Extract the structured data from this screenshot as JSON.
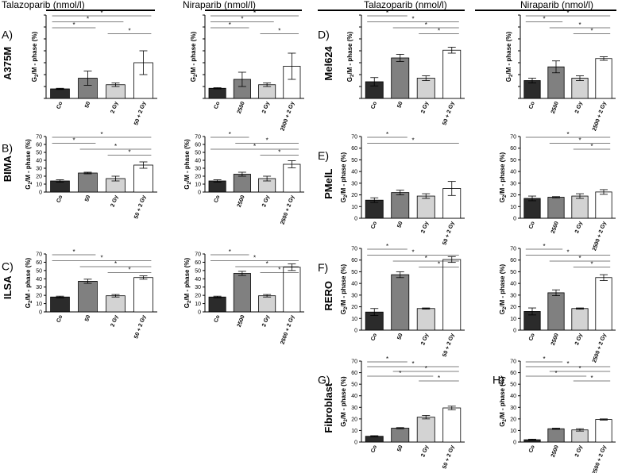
{
  "headers": [
    {
      "text": "Talazoparib (nmol/l)"
    },
    {
      "text": "Niraparib (nmol/l)"
    },
    {
      "text": "Talazoparib (nmol/l)"
    },
    {
      "text": "Niraparib (nmol/l)"
    }
  ],
  "ylabel": {
    "pre": "G",
    "sub": "2",
    "post": "/M - phase (%)"
  },
  "colors": {
    "co": "#2b2b2b",
    "drug": "#808080",
    "gy": "#d3d3d3",
    "combo": "#ffffff",
    "axis": "#000000"
  },
  "ylim": [
    0,
    70
  ],
  "yticks": [
    0,
    10,
    20,
    30,
    40,
    50,
    60,
    70
  ],
  "chart_data": [
    {
      "type": "bar",
      "panel": "A)",
      "cell_line": "A375M",
      "drug": "Talazoparib (nmol/l)",
      "categories": [
        "Co",
        "50",
        "2 Gy",
        "50 + 2 Gy"
      ],
      "values": [
        8,
        17,
        11.5,
        30
      ],
      "errors": [
        0.5,
        6,
        1.5,
        10
      ],
      "ytick_labels": false,
      "significance": [
        [
          0,
          3
        ],
        [
          0,
          2
        ],
        [
          0,
          1
        ],
        [
          2,
          3
        ]
      ]
    },
    {
      "type": "bar",
      "panel": "",
      "cell_line": "",
      "drug": "Niraparib (nmol/l)",
      "categories": [
        "Co",
        "2500",
        "2 Gy",
        "2500 + 2 Gy"
      ],
      "values": [
        8.5,
        16,
        11.5,
        27
      ],
      "errors": [
        0.5,
        6,
        1.5,
        11
      ],
      "ytick_labels": false,
      "significance": [
        [
          0,
          3
        ],
        [
          0,
          2
        ],
        [
          0,
          1
        ],
        [
          2,
          3
        ]
      ]
    },
    {
      "type": "bar",
      "panel": "B)",
      "cell_line": "BIMA",
      "drug": "",
      "categories": [
        "Co",
        "50",
        "2 Gy",
        "50 + 2 Gy"
      ],
      "values": [
        14,
        24,
        17,
        34
      ],
      "errors": [
        1.5,
        1,
        3,
        4
      ],
      "ytick_labels": true,
      "significance": [
        [
          0,
          3
        ],
        [
          0,
          1
        ],
        [
          1,
          3
        ],
        [
          2,
          3
        ]
      ]
    },
    {
      "type": "bar",
      "panel": "",
      "cell_line": "",
      "drug": "",
      "categories": [
        "Co",
        "2500",
        "2 Gy",
        "2500 + 2 Gy"
      ],
      "values": [
        14,
        22.5,
        17,
        35
      ],
      "errors": [
        1.5,
        2.5,
        3,
        4.5
      ],
      "ytick_labels": true,
      "significance": [
        [
          0,
          1
        ],
        [
          1,
          3
        ],
        [
          0,
          3
        ],
        [
          2,
          3
        ]
      ]
    },
    {
      "type": "bar",
      "panel": "C)",
      "cell_line": "ILSA",
      "drug": "",
      "categories": [
        "Co",
        "50",
        "2 Gy",
        "50 + 2 Gy"
      ],
      "values": [
        18,
        37,
        19.5,
        41.5
      ],
      "errors": [
        1,
        2.5,
        1.5,
        2
      ],
      "ytick_labels": true,
      "significance": [
        [
          0,
          1
        ],
        [
          0,
          3
        ],
        [
          1,
          3
        ],
        [
          2,
          3
        ]
      ]
    },
    {
      "type": "bar",
      "panel": "",
      "cell_line": "",
      "drug": "",
      "categories": [
        "Co",
        "2500",
        "2 Gy",
        "2500 + 2 Gy"
      ],
      "values": [
        18,
        46.5,
        19.5,
        54
      ],
      "errors": [
        1,
        2.5,
        1.5,
        4
      ],
      "ytick_labels": true,
      "significance": [
        [
          0,
          1
        ],
        [
          0,
          3
        ],
        [
          1,
          3
        ],
        [
          2,
          3
        ]
      ]
    },
    {
      "type": "bar",
      "panel": "D)",
      "cell_line": "Mel624",
      "drug": "Talazoparib (nmol/l)",
      "categories": [
        "Co",
        "50",
        "2 Gy",
        "50 + 2 Gy"
      ],
      "values": [
        14,
        34,
        17,
        40.5
      ],
      "errors": [
        3.5,
        3,
        2,
        2.5
      ],
      "ytick_labels": false,
      "significance": [
        [
          0,
          1
        ],
        [
          0,
          3
        ],
        [
          1,
          3
        ],
        [
          2,
          3
        ]
      ]
    },
    {
      "type": "bar",
      "panel": "",
      "cell_line": "",
      "drug": "Niraparib (nmol/l)",
      "categories": [
        "Co",
        "2500",
        "2 Gy",
        "2500 + 2 Gy"
      ],
      "values": [
        15,
        26.5,
        17,
        33.5
      ],
      "errors": [
        2,
        5,
        2,
        1.5
      ],
      "ytick_labels": false,
      "significance": [
        [
          0,
          3
        ],
        [
          0,
          1
        ],
        [
          1,
          3
        ],
        [
          2,
          3
        ]
      ]
    },
    {
      "type": "bar",
      "panel": "E)",
      "cell_line": "PMelL",
      "drug": "",
      "categories": [
        "Co",
        "50",
        "2 Gy",
        "50 + 2 Gy"
      ],
      "values": [
        15.5,
        22,
        19,
        25.5
      ],
      "errors": [
        2,
        2,
        2,
        6
      ],
      "ytick_labels": true,
      "significance": [
        [
          0,
          1
        ],
        [
          0,
          3
        ]
      ]
    },
    {
      "type": "bar",
      "panel": "",
      "cell_line": "",
      "drug": "",
      "categories": [
        "Co",
        "2500",
        "2 Gy",
        "2500 + 2 Gy"
      ],
      "values": [
        17,
        18,
        19,
        22.5
      ],
      "errors": [
        2,
        0.5,
        2,
        2
      ],
      "ytick_labels": true,
      "significance": [
        [
          0,
          3
        ],
        [
          1,
          3
        ],
        [
          2,
          3
        ]
      ]
    },
    {
      "type": "bar",
      "panel": "F)",
      "cell_line": "RERO",
      "drug": "",
      "categories": [
        "Co",
        "50",
        "2 Gy",
        "50 + 2 Gy"
      ],
      "values": [
        15.5,
        47.5,
        18.5,
        60.5
      ],
      "errors": [
        3,
        2.5,
        0.5,
        2.5
      ],
      "ytick_labels": true,
      "significance": [
        [
          0,
          1
        ],
        [
          0,
          3
        ],
        [
          1,
          3
        ],
        [
          2,
          3
        ]
      ]
    },
    {
      "type": "bar",
      "panel": "",
      "cell_line": "",
      "drug": "",
      "categories": [
        "Co",
        "2500",
        "2 Gy",
        "2500 + 2 Gy"
      ],
      "values": [
        16,
        32,
        18.5,
        45
      ],
      "errors": [
        3,
        2.5,
        0.5,
        2.5
      ],
      "ytick_labels": true,
      "significance": [
        [
          0,
          1
        ],
        [
          0,
          3
        ],
        [
          1,
          3
        ],
        [
          2,
          3
        ]
      ]
    },
    {
      "type": "bar",
      "panel": "G)",
      "cell_line": "Fibroblast",
      "drug": "",
      "categories": [
        "Co",
        "50",
        "2 Gy",
        "50 + 2 Gy"
      ],
      "values": [
        5,
        12,
        21.5,
        29.5
      ],
      "errors": [
        0.5,
        0.5,
        1.5,
        1.5
      ],
      "ytick_labels": true,
      "significance": [
        [
          0,
          1
        ],
        [
          0,
          3
        ],
        [
          1,
          3
        ],
        [
          0,
          2
        ],
        [
          2,
          3
        ]
      ]
    },
    {
      "type": "bar",
      "panel": "H)",
      "cell_line": "",
      "drug": "",
      "categories": [
        "Co",
        "2500",
        "2 Gy",
        "2500 + 2 Gy"
      ],
      "values": [
        2,
        11.5,
        10.5,
        19.5
      ],
      "errors": [
        0.5,
        0.5,
        1,
        0.5
      ],
      "ytick_labels": true,
      "significance": [
        [
          0,
          1
        ],
        [
          0,
          3
        ],
        [
          1,
          3
        ],
        [
          0,
          2
        ],
        [
          2,
          3
        ]
      ]
    }
  ]
}
